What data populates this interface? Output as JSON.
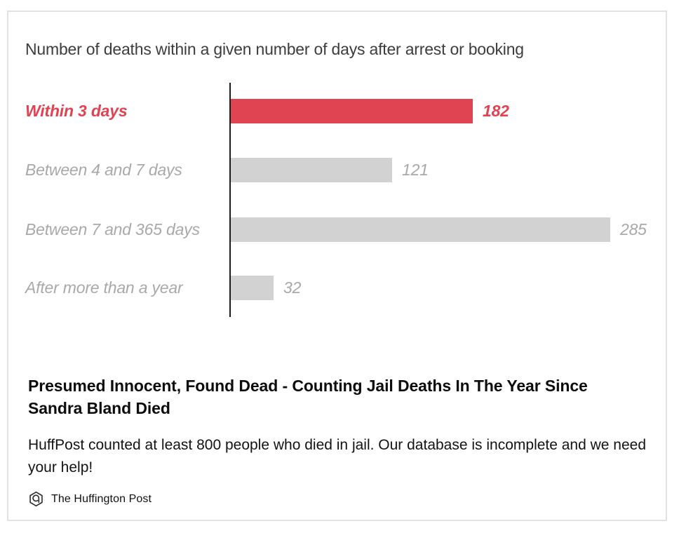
{
  "chart_data": {
    "type": "bar",
    "orientation": "horizontal",
    "title": "Number of deaths within a given number of days after arrest or booking",
    "categories": [
      "Within 3 days",
      "Between 4 and 7 days",
      "Between 7 and 365 days",
      "After more than a year"
    ],
    "values": [
      182,
      121,
      285,
      32
    ],
    "value_labels_shown": true,
    "highlight_index": 0,
    "highlight_color": "#e04351",
    "bar_color": "#d2d2d2",
    "muted_label_color": "#a8a9ab",
    "title_color": "#3d3d3d",
    "axis_color": "#1b1b1b",
    "xlim": [
      0,
      300
    ],
    "grid": false,
    "legend": "none",
    "axis_baseline": "left"
  },
  "article": {
    "headline": "Presumed Innocent, Found Dead - Counting Jail Deaths In The Year Since Sandra Bland Died",
    "description": "HuffPost counted at least 800 people who died in jail. Our database is incomplete and we need your help!",
    "source": {
      "name": "The Huffington Post",
      "icon": "huffpost-logo-icon"
    }
  }
}
